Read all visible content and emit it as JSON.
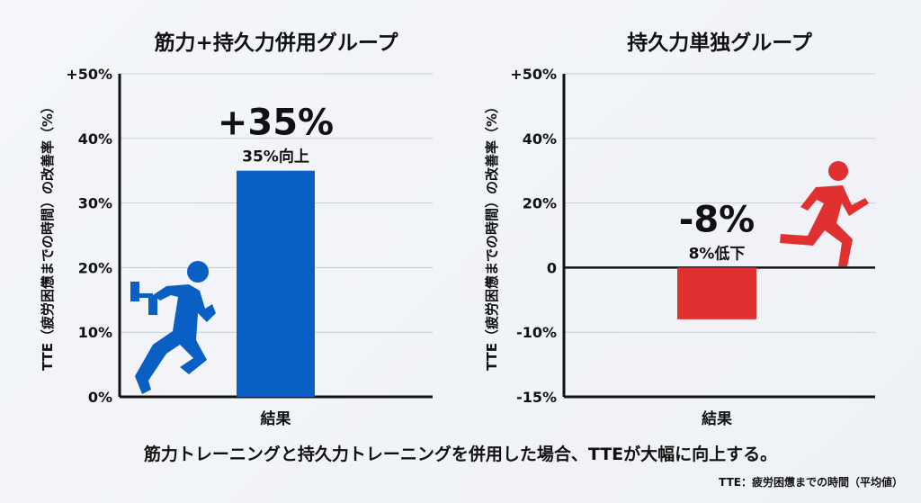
{
  "chart_data": [
    {
      "type": "bar",
      "title": "筋力+持久力併用グループ",
      "ylabel": "TTE（疲労困憊までの時間）の改善率（%）",
      "xlabel": "",
      "categories": [
        "結果"
      ],
      "values": [
        35
      ],
      "yticks": [
        0,
        10,
        20,
        30,
        40,
        50
      ],
      "ytick_labels": [
        "0%",
        "10%",
        "20%",
        "30%",
        "40%",
        "+50%"
      ],
      "ylim": [
        0,
        50
      ],
      "grid": true,
      "bar_color": "#0a5fc4",
      "annotation_big": "+35%",
      "annotation_small": "35%向上",
      "icon": "weightlifting-runner-icon"
    },
    {
      "type": "bar",
      "title": "持久力単独グループ",
      "ylabel": "TTE（疲労困憊までの時間）の改善率（%）",
      "xlabel": "",
      "categories": [
        "結果"
      ],
      "values": [
        -8
      ],
      "yticks": [
        -15,
        -10,
        0,
        20,
        40,
        50
      ],
      "ytick_labels": [
        "-15%",
        "-10%",
        "0",
        "20%",
        "40%",
        "+50%"
      ],
      "ylim": [
        -15,
        50
      ],
      "grid": true,
      "bar_color": "#e03030",
      "annotation_big": "-8%",
      "annotation_small": "8%低下",
      "icon": "runner-icon"
    }
  ],
  "caption": "筋力トレーニングと持久力トレーニングを併用した場合、TTEが大幅に向上する。",
  "footnote": "TTE：疲労困憊までの時間（平均値）"
}
